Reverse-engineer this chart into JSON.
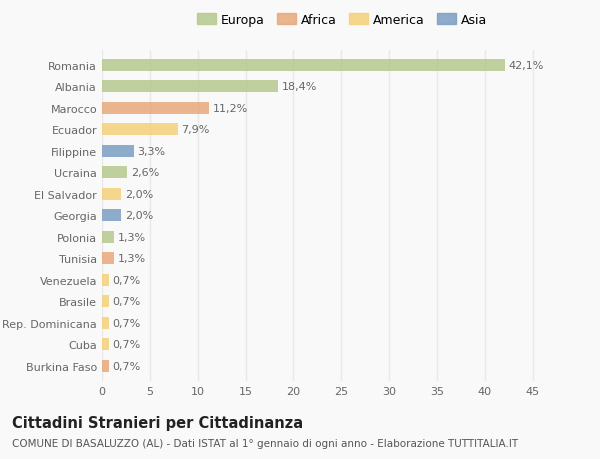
{
  "categories": [
    "Romania",
    "Albania",
    "Marocco",
    "Ecuador",
    "Filippine",
    "Ucraina",
    "El Salvador",
    "Georgia",
    "Polonia",
    "Tunisia",
    "Venezuela",
    "Brasile",
    "Rep. Dominicana",
    "Cuba",
    "Burkina Faso"
  ],
  "values": [
    42.1,
    18.4,
    11.2,
    7.9,
    3.3,
    2.6,
    2.0,
    2.0,
    1.3,
    1.3,
    0.7,
    0.7,
    0.7,
    0.7,
    0.7
  ],
  "labels": [
    "42,1%",
    "18,4%",
    "11,2%",
    "7,9%",
    "3,3%",
    "2,6%",
    "2,0%",
    "2,0%",
    "1,3%",
    "1,3%",
    "0,7%",
    "0,7%",
    "0,7%",
    "0,7%",
    "0,7%"
  ],
  "colors": [
    "#b5c98e",
    "#b5c98e",
    "#e8a87c",
    "#f5d07a",
    "#7a9fc2",
    "#b5c98e",
    "#f5d07a",
    "#7a9fc2",
    "#b5c98e",
    "#e8a87c",
    "#f5d07a",
    "#f5d07a",
    "#f5d07a",
    "#f5d07a",
    "#e8a87c"
  ],
  "legend_labels": [
    "Europa",
    "Africa",
    "America",
    "Asia"
  ],
  "legend_colors": [
    "#b5c98e",
    "#e8a87c",
    "#f5d07a",
    "#7a9fc2"
  ],
  "title": "Cittadini Stranieri per Cittadinanza",
  "subtitle": "COMUNE DI BASALUZZO (AL) - Dati ISTAT al 1° gennaio di ogni anno - Elaborazione TUTTITALIA.IT",
  "xlim": [
    0,
    47
  ],
  "xticks": [
    0,
    5,
    10,
    15,
    20,
    25,
    30,
    35,
    40,
    45
  ],
  "background_color": "#f9f9f9",
  "grid_color": "#e8e8e8",
  "bar_height": 0.55,
  "label_fontsize": 8,
  "tick_fontsize": 8,
  "title_fontsize": 10.5,
  "subtitle_fontsize": 7.5
}
